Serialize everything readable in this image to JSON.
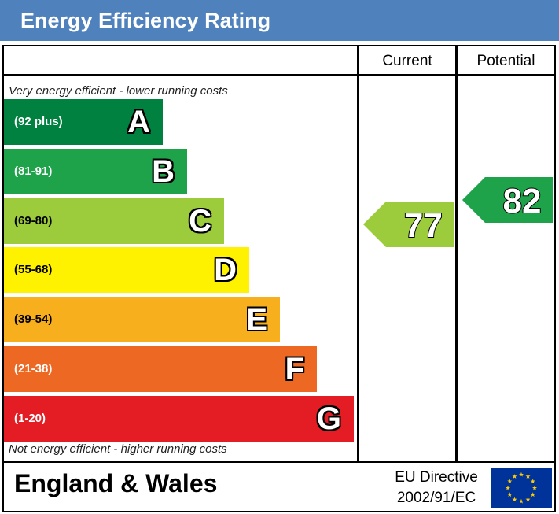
{
  "title": "Energy Efficiency Rating",
  "columns": {
    "current": "Current",
    "potential": "Potential"
  },
  "notes": {
    "top": "Very energy efficient - lower running costs",
    "bottom": "Not energy efficient - higher running costs"
  },
  "chart_data": {
    "type": "bar",
    "title": "Energy Efficiency Rating",
    "bands": [
      {
        "letter": "A",
        "range": "(92 plus)",
        "color": "#00813f"
      },
      {
        "letter": "B",
        "range": "(81-91)",
        "color": "#1ea24a"
      },
      {
        "letter": "C",
        "range": "(69-80)",
        "color": "#9ccb3b"
      },
      {
        "letter": "D",
        "range": "(55-68)",
        "color": "#fff200"
      },
      {
        "letter": "E",
        "range": "(39-54)",
        "color": "#f7af1d"
      },
      {
        "letter": "F",
        "range": "(21-38)",
        "color": "#ed6823"
      },
      {
        "letter": "G",
        "range": "(1-20)",
        "color": "#e31d23"
      }
    ],
    "current": {
      "value": 77,
      "band": "C",
      "color": "#9ccb3b"
    },
    "potential": {
      "value": 82,
      "band": "B",
      "color": "#1ea24a"
    }
  },
  "footer": {
    "region": "England & Wales",
    "directive_line1": "EU Directive",
    "directive_line2": "2002/91/EC"
  }
}
